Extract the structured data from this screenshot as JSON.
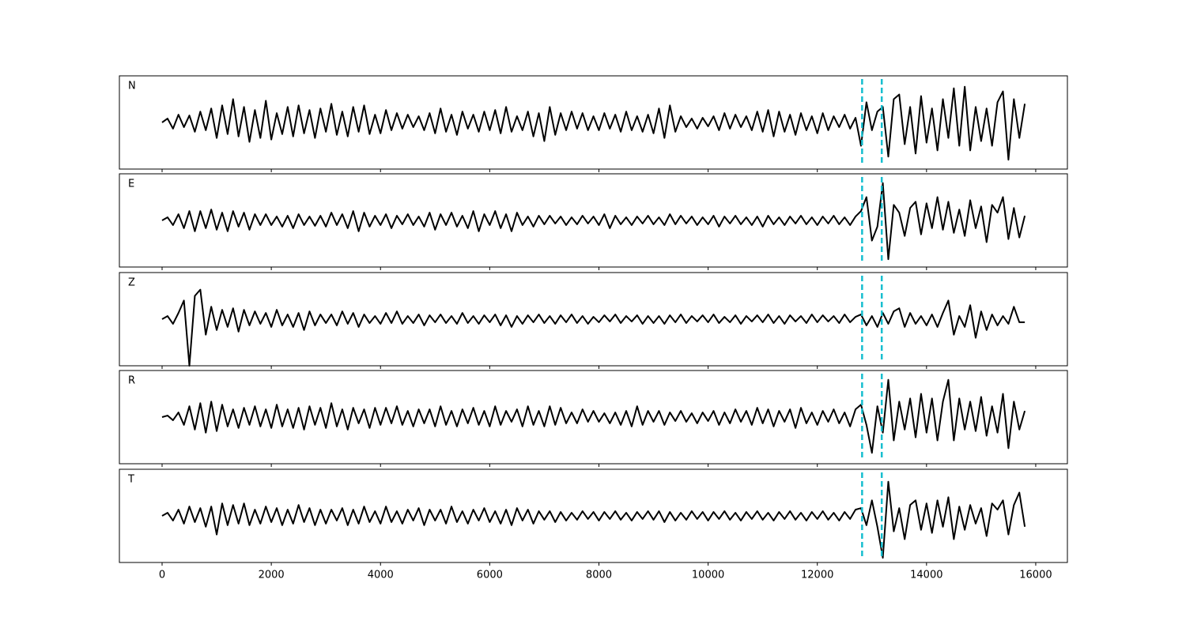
{
  "chart_data": {
    "type": "line",
    "color": "#000000",
    "vline_color": "#17becf",
    "x": [
      0,
      100,
      200,
      300,
      400,
      500,
      600,
      700,
      800,
      900,
      1000,
      1100,
      1200,
      1300,
      1400,
      1500,
      1600,
      1700,
      1800,
      1900,
      2000,
      2100,
      2200,
      2300,
      2400,
      2500,
      2600,
      2700,
      2800,
      2900,
      3000,
      3100,
      3200,
      3300,
      3400,
      3500,
      3600,
      3700,
      3800,
      3900,
      4000,
      4100,
      4200,
      4300,
      4400,
      4500,
      4600,
      4700,
      4800,
      4900,
      5000,
      5100,
      5200,
      5300,
      5400,
      5500,
      5600,
      5700,
      5800,
      5900,
      6000,
      6100,
      6200,
      6300,
      6400,
      6500,
      6600,
      6700,
      6800,
      6900,
      7000,
      7100,
      7200,
      7300,
      7400,
      7500,
      7600,
      7700,
      7800,
      7900,
      8000,
      8100,
      8200,
      8300,
      8400,
      8500,
      8600,
      8700,
      8800,
      8900,
      9000,
      9100,
      9200,
      9300,
      9400,
      9500,
      9600,
      9700,
      9800,
      9900,
      10000,
      10100,
      10200,
      10300,
      10400,
      10500,
      10600,
      10700,
      10800,
      10900,
      11000,
      11100,
      11200,
      11300,
      11400,
      11500,
      11600,
      11700,
      11800,
      11900,
      12000,
      12100,
      12200,
      12300,
      12400,
      12500,
      12600,
      12700,
      12800,
      12900,
      13000,
      13100,
      13200,
      13300,
      13400,
      13500,
      13600,
      13700,
      13800,
      13900,
      14000,
      14100,
      14200,
      14300,
      14400,
      14500,
      14600,
      14700,
      14800,
      14900,
      15000,
      15100,
      15200,
      15300,
      15400,
      15500,
      15600,
      15700,
      15800
    ],
    "xlim": [
      -782,
      16580
    ],
    "xticks": [
      0,
      2000,
      4000,
      6000,
      8000,
      10000,
      12000,
      14000,
      16000
    ],
    "ylim": [
      -60,
      60
    ],
    "vlines": [
      12820,
      13180
    ],
    "series": [
      {
        "name": "N",
        "values": [
          0,
          5,
          -8,
          10,
          -6,
          9,
          -12,
          14,
          -10,
          18,
          -20,
          22,
          -15,
          30,
          -18,
          20,
          -25,
          16,
          -20,
          28,
          -22,
          12,
          -15,
          20,
          -18,
          22,
          -14,
          16,
          -20,
          18,
          -12,
          24,
          -16,
          14,
          -18,
          20,
          -12,
          22,
          -15,
          10,
          -14,
          16,
          -10,
          12,
          -8,
          10,
          -6,
          8,
          -10,
          12,
          -14,
          18,
          -12,
          10,
          -16,
          14,
          -8,
          10,
          -12,
          14,
          -10,
          16,
          -14,
          20,
          -12,
          8,
          -10,
          14,
          -18,
          12,
          -24,
          20,
          -16,
          12,
          -10,
          14,
          -8,
          12,
          -10,
          8,
          -10,
          12,
          -8,
          10,
          -12,
          14,
          -10,
          8,
          -12,
          10,
          -14,
          18,
          -20,
          22,
          -12,
          8,
          -6,
          5,
          -8,
          6,
          -5,
          8,
          -10,
          12,
          -8,
          10,
          -6,
          8,
          -10,
          14,
          -12,
          16,
          -18,
          14,
          -12,
          10,
          -16,
          12,
          -10,
          8,
          -14,
          12,
          -10,
          8,
          -6,
          10,
          -8,
          6,
          -30,
          26,
          -10,
          14,
          20,
          -44,
          30,
          36,
          -28,
          20,
          -40,
          34,
          -26,
          18,
          -36,
          30,
          -20,
          44,
          -30,
          46,
          -36,
          20,
          -24,
          18,
          -30,
          26,
          40,
          -48,
          30,
          -20,
          24
        ]
      },
      {
        "name": "E",
        "values": [
          0,
          4,
          -6,
          8,
          -10,
          12,
          -14,
          12,
          -10,
          14,
          -12,
          10,
          -14,
          12,
          -8,
          10,
          -12,
          8,
          -6,
          8,
          -6,
          5,
          -8,
          6,
          -10,
          8,
          -6,
          5,
          -7,
          6,
          -8,
          10,
          -6,
          8,
          -10,
          12,
          -14,
          10,
          -8,
          6,
          -6,
          8,
          -10,
          6,
          -5,
          8,
          -6,
          5,
          -8,
          10,
          -12,
          8,
          -6,
          10,
          -8,
          6,
          -10,
          12,
          -14,
          8,
          -6,
          12,
          -10,
          8,
          -14,
          10,
          -6,
          5,
          -8,
          6,
          -5,
          6,
          -4,
          5,
          -6,
          4,
          -5,
          6,
          -4,
          5,
          -6,
          8,
          -10,
          6,
          -5,
          4,
          -6,
          5,
          -4,
          6,
          -5,
          4,
          -6,
          8,
          -5,
          6,
          -4,
          5,
          -6,
          4,
          -5,
          6,
          -8,
          5,
          -4,
          6,
          -5,
          4,
          -6,
          5,
          -8,
          6,
          -5,
          4,
          -6,
          5,
          -4,
          6,
          -5,
          4,
          -6,
          5,
          -4,
          6,
          -5,
          4,
          -6,
          5,
          12,
          30,
          -26,
          -8,
          48,
          -50,
          20,
          10,
          -20,
          16,
          24,
          -18,
          22,
          -10,
          30,
          -12,
          24,
          -16,
          14,
          -20,
          26,
          -10,
          18,
          -28,
          20,
          10,
          30,
          -24,
          16,
          -22,
          6
        ]
      },
      {
        "name": "Z",
        "values": [
          0,
          4,
          -6,
          8,
          24,
          -60,
          30,
          38,
          -20,
          16,
          -14,
          12,
          -10,
          14,
          -16,
          12,
          -8,
          10,
          -6,
          8,
          -10,
          12,
          -8,
          6,
          -10,
          8,
          -14,
          10,
          -8,
          6,
          -5,
          6,
          -8,
          10,
          -6,
          8,
          -10,
          6,
          -5,
          4,
          -6,
          8,
          -5,
          10,
          -6,
          4,
          -5,
          6,
          -8,
          5,
          -4,
          6,
          -5,
          4,
          -6,
          8,
          -5,
          4,
          -6,
          5,
          -4,
          6,
          -8,
          5,
          -10,
          4,
          -6,
          5,
          -4,
          6,
          -5,
          4,
          -6,
          5,
          -4,
          6,
          -5,
          4,
          -6,
          3,
          -4,
          5,
          -3,
          6,
          -5,
          4,
          -3,
          5,
          -6,
          4,
          -5,
          4,
          -6,
          5,
          -4,
          6,
          -5,
          4,
          -3,
          5,
          -4,
          6,
          -5,
          3,
          -4,
          5,
          -6,
          4,
          -3,
          5,
          -4,
          6,
          -5,
          4,
          -6,
          5,
          -3,
          4,
          -5,
          6,
          -4,
          5,
          -3,
          4,
          -5,
          6,
          -4,
          3,
          6,
          -8,
          4,
          -10,
          8,
          -6,
          10,
          14,
          -10,
          8,
          -6,
          4,
          -8,
          6,
          -10,
          8,
          24,
          -20,
          4,
          -10,
          18,
          -24,
          10,
          -14,
          6,
          -8,
          4,
          -6,
          16,
          -4,
          -4
        ]
      },
      {
        "name": "R",
        "values": [
          0,
          2,
          -4,
          6,
          -10,
          14,
          -16,
          18,
          -20,
          20,
          -18,
          16,
          -12,
          10,
          -14,
          12,
          -10,
          14,
          -12,
          10,
          -14,
          16,
          -12,
          10,
          -14,
          12,
          -16,
          14,
          -10,
          12,
          -14,
          18,
          -12,
          10,
          -16,
          12,
          -8,
          10,
          -14,
          12,
          -10,
          12,
          -8,
          14,
          -10,
          8,
          -12,
          10,
          -8,
          10,
          -12,
          14,
          -10,
          8,
          -12,
          10,
          -8,
          12,
          -10,
          8,
          -12,
          14,
          -10,
          8,
          -6,
          10,
          -12,
          14,
          -10,
          8,
          -12,
          14,
          -10,
          12,
          -8,
          6,
          -8,
          10,
          -6,
          8,
          -6,
          5,
          -8,
          6,
          -10,
          8,
          -12,
          14,
          -10,
          8,
          -6,
          8,
          -10,
          6,
          -5,
          8,
          -6,
          5,
          -8,
          6,
          -5,
          8,
          -10,
          6,
          -8,
          10,
          -6,
          8,
          -10,
          12,
          -8,
          10,
          -12,
          8,
          -6,
          10,
          -14,
          12,
          -8,
          6,
          -10,
          8,
          -6,
          10,
          -8,
          6,
          -12,
          10,
          16,
          -10,
          -46,
          14,
          -20,
          48,
          -30,
          20,
          -16,
          24,
          -26,
          30,
          -20,
          24,
          -30,
          20,
          48,
          -30,
          24,
          -16,
          20,
          -18,
          26,
          -24,
          14,
          -20,
          30,
          -40,
          20,
          -16,
          8
        ]
      },
      {
        "name": "T",
        "values": [
          0,
          4,
          -6,
          8,
          -10,
          12,
          -8,
          10,
          -14,
          12,
          -24,
          16,
          -12,
          14,
          -10,
          16,
          -12,
          8,
          -10,
          12,
          -8,
          10,
          -12,
          8,
          -10,
          14,
          -8,
          10,
          -12,
          8,
          -10,
          8,
          -6,
          10,
          -12,
          8,
          -10,
          12,
          -8,
          6,
          -10,
          12,
          -8,
          6,
          -10,
          8,
          -6,
          10,
          -12,
          8,
          -6,
          8,
          -10,
          12,
          -8,
          6,
          -10,
          8,
          -6,
          10,
          -8,
          6,
          -10,
          8,
          -12,
          10,
          -6,
          8,
          -10,
          6,
          -5,
          6,
          -8,
          5,
          -6,
          4,
          -5,
          6,
          -4,
          5,
          -6,
          5,
          -4,
          6,
          -5,
          4,
          -6,
          5,
          -4,
          6,
          -5,
          6,
          -8,
          5,
          -6,
          4,
          -5,
          6,
          -4,
          5,
          -6,
          5,
          -4,
          6,
          -5,
          4,
          -6,
          5,
          -4,
          6,
          -5,
          4,
          -6,
          5,
          -4,
          6,
          -5,
          4,
          -6,
          5,
          -4,
          6,
          -5,
          4,
          -6,
          5,
          -4,
          8,
          10,
          -12,
          20,
          -14,
          -54,
          44,
          -20,
          10,
          -30,
          14,
          20,
          -18,
          16,
          -22,
          20,
          -14,
          24,
          -30,
          12,
          -18,
          14,
          -10,
          10,
          -26,
          16,
          8,
          20,
          -24,
          14,
          30,
          -14
        ]
      }
    ]
  }
}
